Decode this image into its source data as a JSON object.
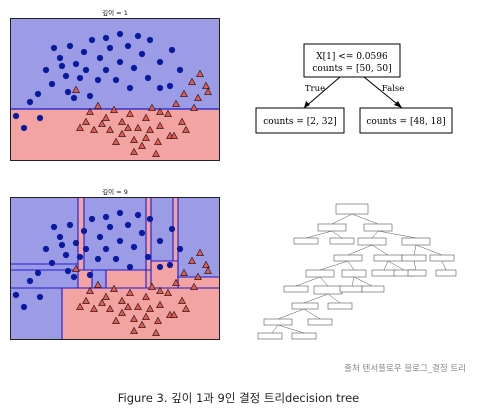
{
  "plots": [
    {
      "title": "깊이 = 1"
    },
    {
      "title": "깊이 = 9"
    }
  ],
  "tree1": {
    "root": {
      "line1": "X[1] <= 0.0596",
      "line2": "counts = [50, 50]"
    },
    "edge_true": "True",
    "edge_false": "False",
    "left_leaf": "counts = [2, 32]",
    "right_leaf": "counts = [48, 18]"
  },
  "source_note": "출처 텐서플로우 블로그_결정 트리",
  "caption": "Figure 3. 깊이 1과 9인 결정 트리decision tree",
  "colors": {
    "class0_region": "#9b9be6",
    "class1_region": "#f4a3a3",
    "class0_point": "#0a1a9e",
    "class1_point": "#e45a4e",
    "boundary": "#1c1cd1"
  }
}
